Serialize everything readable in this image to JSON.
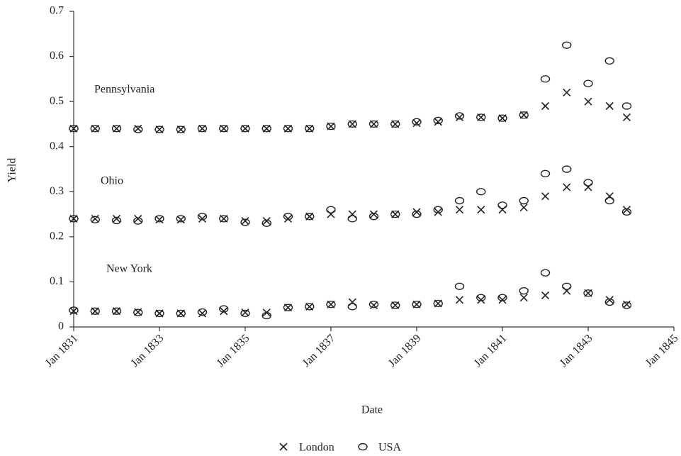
{
  "chart_data": {
    "type": "scatter",
    "x_label": "Date",
    "y_label": "Yield",
    "annotations": [
      "Pennsylvania",
      "Ohio",
      "New York"
    ],
    "xlim": [
      1831,
      1845
    ],
    "xticks": [
      {
        "value": 1831,
        "label": "Jan 1831"
      },
      {
        "value": 1833,
        "label": "Jan 1833"
      },
      {
        "value": 1835,
        "label": "Jan 1835"
      },
      {
        "value": 1837,
        "label": "Jan 1837"
      },
      {
        "value": 1839,
        "label": "Jan 1839"
      },
      {
        "value": 1841,
        "label": "Jan 1841"
      },
      {
        "value": 1843,
        "label": "Jan 1843"
      },
      {
        "value": 1845,
        "label": "Jan 1845"
      }
    ],
    "ylim": [
      0,
      0.7
    ],
    "yticks": [
      0,
      0.1,
      0.2,
      0.3,
      0.4,
      0.5,
      0.6,
      0.7
    ],
    "grid": false,
    "legend": "bottom",
    "series": [
      {
        "name": "London",
        "marker": "x",
        "color": "#222",
        "x": [
          1831,
          1831.5,
          1832,
          1832.5,
          1833,
          1833.5,
          1834,
          1834.5,
          1835,
          1835.5,
          1836,
          1836.5,
          1837,
          1837.5,
          1838,
          1838.5,
          1839,
          1839.5,
          1840,
          1840.5,
          1841,
          1841.5,
          1842,
          1842.5,
          1843,
          1843.5,
          1843.9,
          1831,
          1831.5,
          1832,
          1832.5,
          1833,
          1833.5,
          1834,
          1834.5,
          1835,
          1835.5,
          1836,
          1836.5,
          1837,
          1837.5,
          1838,
          1838.5,
          1839,
          1839.5,
          1840,
          1840.5,
          1841,
          1841.5,
          1842,
          1842.5,
          1843,
          1843.5,
          1843.9,
          1831,
          1831.5,
          1832,
          1832.5,
          1833,
          1833.5,
          1834,
          1834.5,
          1835,
          1835.5,
          1836,
          1836.5,
          1837,
          1837.5,
          1838,
          1838.5,
          1839,
          1839.5,
          1840,
          1840.5,
          1841,
          1841.5,
          1842,
          1842.5,
          1843,
          1843.5,
          1843.9
        ],
        "values": [
          0.44,
          0.44,
          0.44,
          0.44,
          0.438,
          0.438,
          0.44,
          0.44,
          0.44,
          0.44,
          0.44,
          0.44,
          0.445,
          0.45,
          0.45,
          0.45,
          0.452,
          0.455,
          0.465,
          0.465,
          0.463,
          0.47,
          0.49,
          0.52,
          0.5,
          0.49,
          0.465,
          0.24,
          0.24,
          0.24,
          0.24,
          0.238,
          0.238,
          0.24,
          0.24,
          0.235,
          0.235,
          0.24,
          0.245,
          0.25,
          0.25,
          0.25,
          0.25,
          0.255,
          0.255,
          0.26,
          0.26,
          0.26,
          0.265,
          0.29,
          0.31,
          0.31,
          0.29,
          0.26,
          0.035,
          0.035,
          0.035,
          0.033,
          0.03,
          0.03,
          0.03,
          0.035,
          0.032,
          0.032,
          0.043,
          0.045,
          0.05,
          0.055,
          0.048,
          0.048,
          0.05,
          0.052,
          0.06,
          0.06,
          0.06,
          0.065,
          0.07,
          0.08,
          0.075,
          0.06,
          0.05
        ]
      },
      {
        "name": "USA",
        "marker": "o",
        "color": "#222",
        "x": [
          1831,
          1831.5,
          1832,
          1832.5,
          1833,
          1833.5,
          1834,
          1834.5,
          1835,
          1835.5,
          1836,
          1836.5,
          1837,
          1837.5,
          1838,
          1838.5,
          1839,
          1839.5,
          1840,
          1840.5,
          1841,
          1841.5,
          1842,
          1842.5,
          1843,
          1843.5,
          1843.9,
          1831,
          1831.5,
          1832,
          1832.5,
          1833,
          1833.5,
          1834,
          1834.5,
          1835,
          1835.5,
          1836,
          1836.5,
          1837,
          1837.5,
          1838,
          1838.5,
          1839,
          1839.5,
          1840,
          1840.5,
          1841,
          1841.5,
          1842,
          1842.5,
          1843,
          1843.5,
          1843.9,
          1831,
          1831.5,
          1832,
          1832.5,
          1833,
          1833.5,
          1834,
          1834.5,
          1835,
          1835.5,
          1836,
          1836.5,
          1837,
          1837.5,
          1838,
          1838.5,
          1839,
          1839.5,
          1840,
          1840.5,
          1841,
          1841.5,
          1842,
          1842.5,
          1843,
          1843.5,
          1843.9
        ],
        "values": [
          0.44,
          0.44,
          0.44,
          0.438,
          0.438,
          0.438,
          0.44,
          0.44,
          0.44,
          0.44,
          0.44,
          0.44,
          0.445,
          0.45,
          0.45,
          0.45,
          0.455,
          0.458,
          0.468,
          0.465,
          0.463,
          0.47,
          0.55,
          0.625,
          0.54,
          0.59,
          0.49,
          0.24,
          0.238,
          0.236,
          0.235,
          0.24,
          0.24,
          0.245,
          0.24,
          0.232,
          0.23,
          0.245,
          0.245,
          0.26,
          0.24,
          0.245,
          0.25,
          0.25,
          0.26,
          0.28,
          0.3,
          0.27,
          0.28,
          0.34,
          0.35,
          0.32,
          0.28,
          0.255,
          0.037,
          0.035,
          0.035,
          0.032,
          0.03,
          0.03,
          0.033,
          0.04,
          0.03,
          0.025,
          0.043,
          0.045,
          0.05,
          0.045,
          0.05,
          0.048,
          0.05,
          0.052,
          0.09,
          0.065,
          0.065,
          0.08,
          0.12,
          0.09,
          0.075,
          0.055,
          0.048
        ]
      }
    ]
  }
}
